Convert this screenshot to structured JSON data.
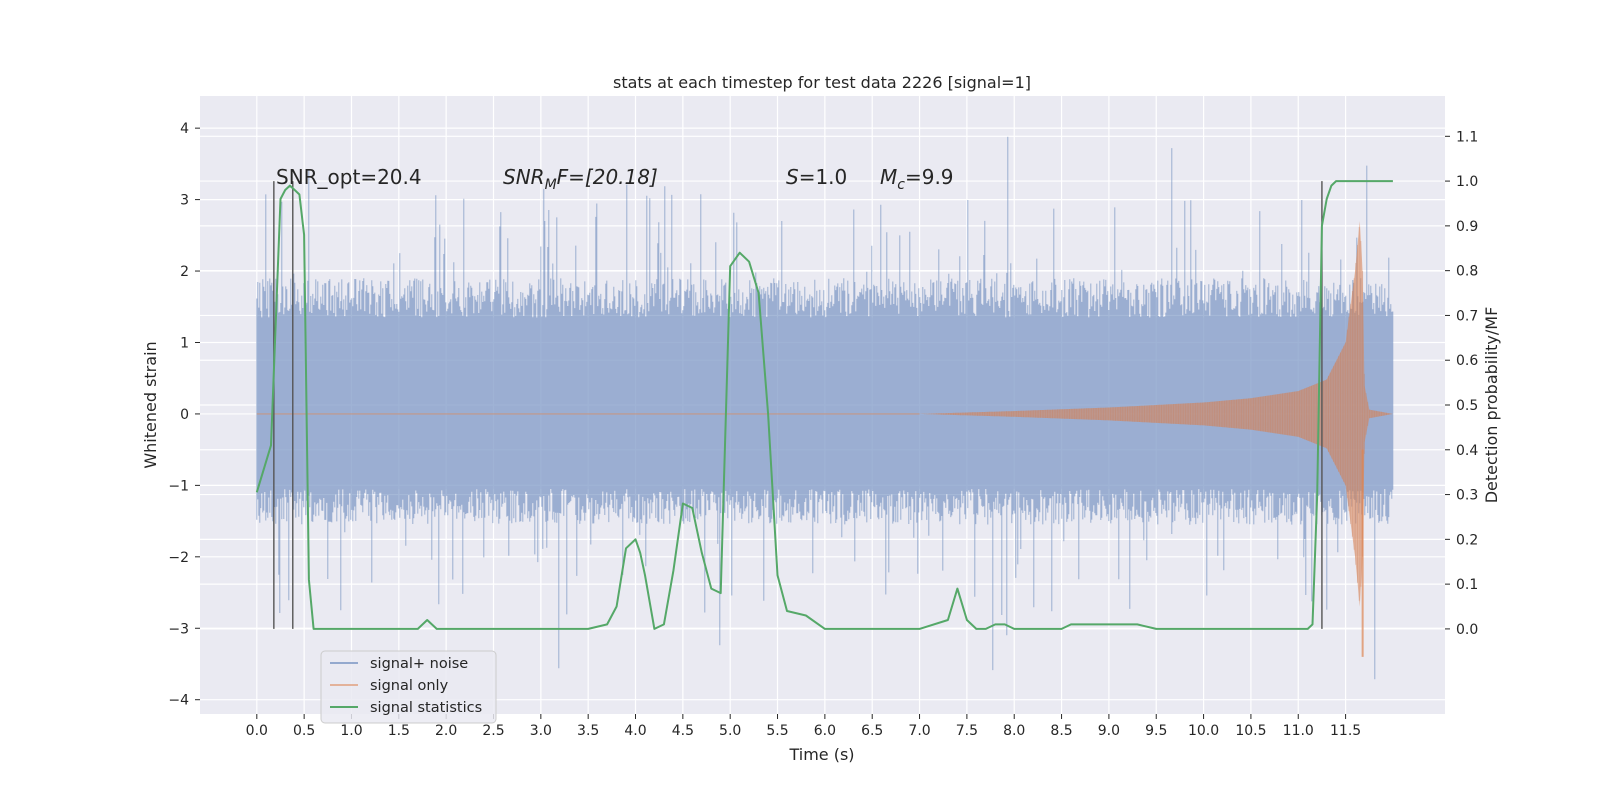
{
  "chart_data": {
    "type": "line",
    "title": "stats at each timestep for test data 2226 [signal=1]",
    "xlabel": "Time (s)",
    "ylabel": "Whitened strain",
    "y2label": "Detection probability/MF",
    "xlim": [
      -0.6,
      12.55
    ],
    "ylim": [
      -4.2,
      4.45
    ],
    "y2lim": [
      -0.19,
      1.19
    ],
    "x_ticks": [
      "0.0",
      "0.5",
      "1.0",
      "1.5",
      "2.0",
      "2.5",
      "3.0",
      "3.5",
      "4.0",
      "4.5",
      "5.0",
      "5.5",
      "6.0",
      "6.5",
      "7.0",
      "7.5",
      "8.0",
      "8.5",
      "9.0",
      "9.5",
      "10.0",
      "10.5",
      "11.0",
      "11.5"
    ],
    "y_ticks": [
      "4",
      "3",
      "2",
      "1",
      "0",
      "−1",
      "−2",
      "−3",
      "−4"
    ],
    "y2_ticks": [
      "1.1",
      "1.0",
      "0.9",
      "0.8",
      "0.7",
      "0.6",
      "0.5",
      "0.4",
      "0.3",
      "0.2",
      "0.1",
      "0.0"
    ],
    "grid": true,
    "legend_position": "lower-left",
    "annotations": {
      "snr_opt": "SNR_opt=20.4",
      "snr_mf_italic": "SNR",
      "snr_mf_sub": "M",
      "snr_mf_rest": "F=[20.18]",
      "s_italic": "S",
      "s_rest": "=1.0",
      "mc_italic": "M",
      "mc_sub": "c",
      "mc_rest": "=9.9"
    },
    "legend": [
      {
        "label": "signal+ noise",
        "color": "#4c72b0"
      },
      {
        "label": "signal only",
        "color": "#dd8452"
      },
      {
        "label": "signal statistics",
        "color": "#55a868"
      }
    ],
    "noise": {
      "t_start": 0.0,
      "t_end": 12.0,
      "band": [
        -1.05,
        1.35
      ],
      "peak_max": 4.1,
      "peak_min": -3.85
    },
    "signal_envelope": {
      "t": [
        7.0,
        8.0,
        9.0,
        10.0,
        10.5,
        11.0,
        11.3,
        11.5,
        11.6,
        11.65,
        11.68,
        11.7,
        11.75,
        12.0
      ],
      "amp": [
        0.0,
        0.04,
        0.09,
        0.16,
        0.22,
        0.32,
        0.48,
        1.0,
        2.0,
        2.7,
        2.0,
        0.4,
        0.06,
        0.0
      ],
      "min_spike": -3.4
    },
    "series": [
      {
        "name": "signal statistics",
        "x": [
          0.0,
          0.15,
          0.25,
          0.3,
          0.35,
          0.4,
          0.45,
          0.5,
          0.55,
          0.6,
          0.7,
          1.0,
          1.5,
          1.7,
          1.8,
          1.9,
          2.0,
          2.5,
          3.0,
          3.5,
          3.7,
          3.8,
          3.9,
          4.0,
          4.05,
          4.1,
          4.2,
          4.3,
          4.4,
          4.5,
          4.6,
          4.7,
          4.8,
          4.9,
          5.0,
          5.1,
          5.2,
          5.3,
          5.4,
          5.5,
          5.6,
          5.8,
          6.0,
          6.5,
          7.0,
          7.3,
          7.4,
          7.5,
          7.6,
          7.7,
          7.8,
          7.9,
          8.0,
          8.5,
          8.6,
          8.7,
          8.9,
          9.0,
          9.2,
          9.3,
          9.5,
          10.0,
          10.5,
          11.0,
          11.1,
          11.15,
          11.2,
          11.25,
          11.3,
          11.35,
          11.4,
          11.5,
          11.6,
          11.7,
          11.8,
          11.9,
          12.0
        ],
        "y": [
          0.305,
          0.41,
          0.96,
          0.98,
          0.99,
          0.98,
          0.97,
          0.88,
          0.11,
          0.0,
          0.0,
          0.0,
          0.0,
          0.0,
          0.02,
          0.0,
          0.0,
          0.0,
          0.0,
          0.0,
          0.01,
          0.05,
          0.18,
          0.2,
          0.17,
          0.12,
          0.0,
          0.01,
          0.13,
          0.28,
          0.27,
          0.17,
          0.09,
          0.08,
          0.81,
          0.84,
          0.82,
          0.75,
          0.48,
          0.12,
          0.04,
          0.03,
          0.0,
          0.0,
          0.0,
          0.02,
          0.09,
          0.02,
          0.0,
          0.0,
          0.01,
          0.01,
          0.0,
          0.0,
          0.01,
          0.01,
          0.01,
          0.01,
          0.01,
          0.01,
          0.0,
          0.0,
          0.0,
          0.0,
          0.0,
          0.01,
          0.3,
          0.9,
          0.96,
          0.99,
          1.0,
          1.0,
          1.0,
          1.0,
          1.0,
          1.0,
          1.0
        ]
      }
    ],
    "vlines_y2": {
      "x": [
        0.18,
        0.38,
        11.25
      ],
      "y_from": 0.0,
      "y_to": 1.0
    }
  }
}
